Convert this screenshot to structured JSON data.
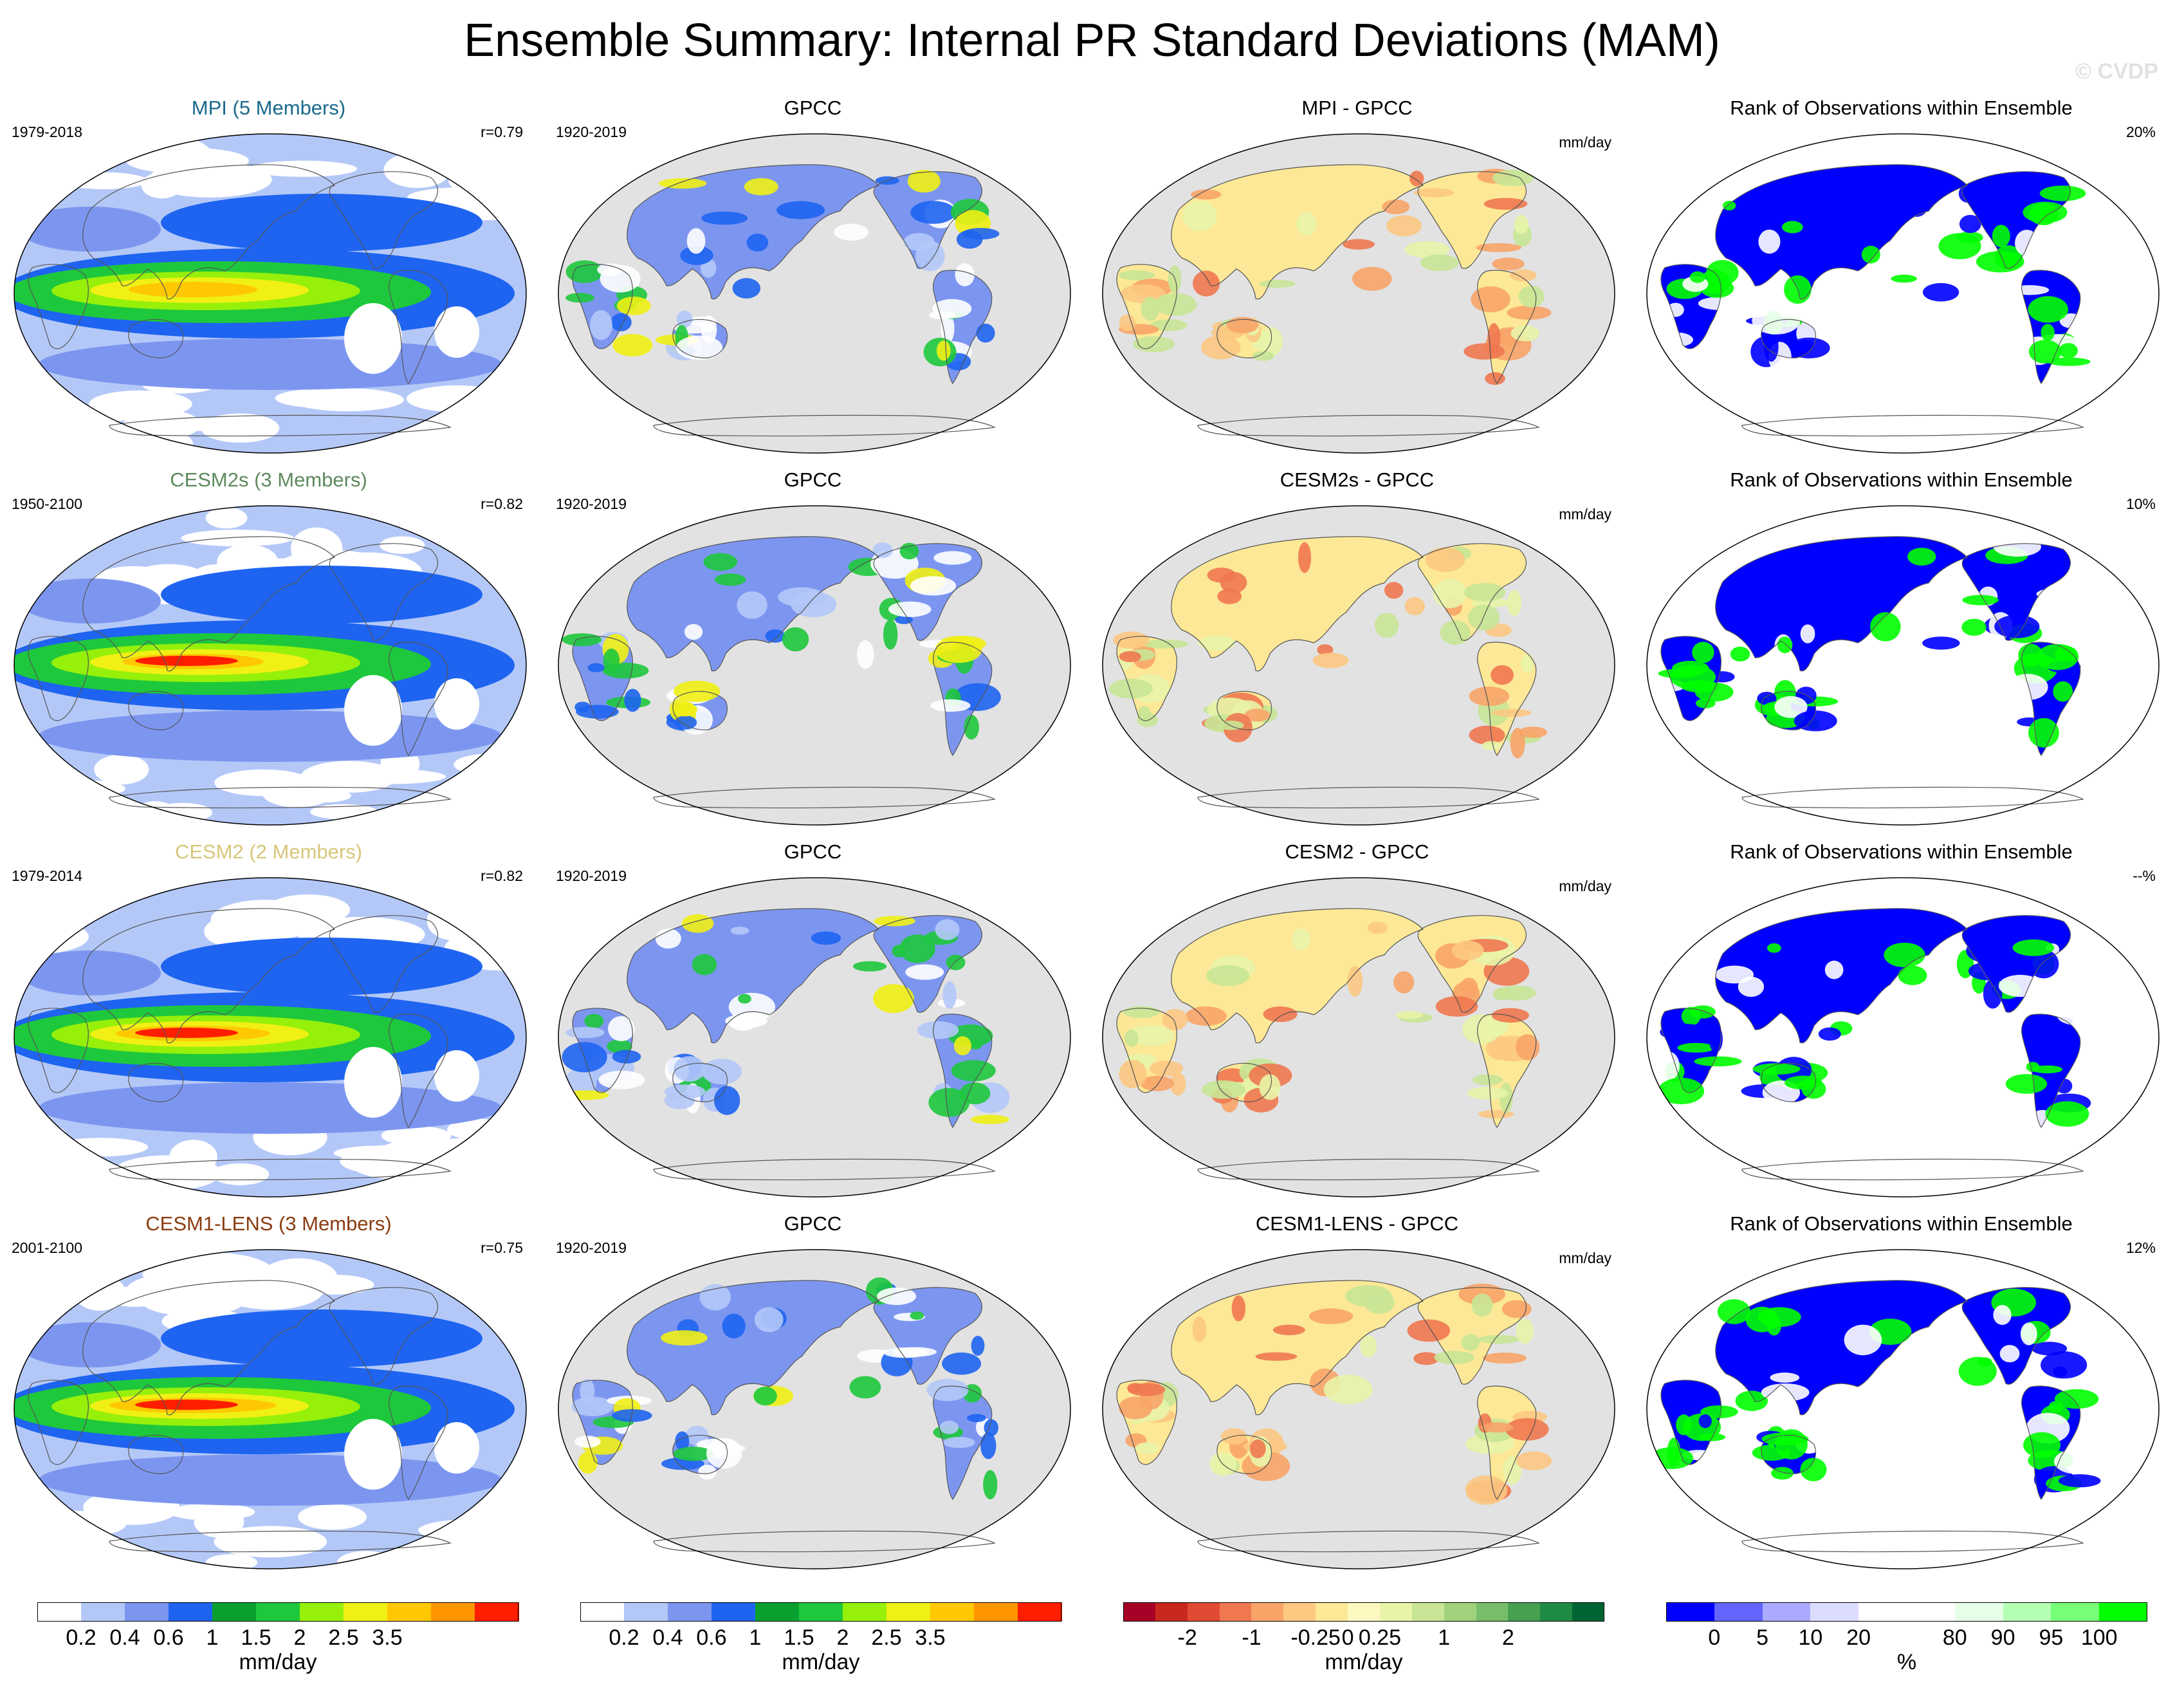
{
  "title": "Ensemble Summary: Internal PR Standard Deviations (MAM)",
  "watermark": "© CVDP",
  "rows": [
    {
      "model": {
        "title": "MPI (5 Members)",
        "title_color": "#1a6a8a",
        "years": "1979-2018",
        "r": "r=0.79"
      },
      "obs": {
        "title": "GPCC",
        "years": "1920-2019"
      },
      "diff": {
        "title": "MPI - GPCC",
        "units": "mm/day"
      },
      "rank": {
        "title": "Rank of Observations within Ensemble",
        "pct": "20%"
      }
    },
    {
      "model": {
        "title": "CESM2s (3 Members)",
        "title_color": "#5e8a5e",
        "years": "1950-2100",
        "r": "r=0.82"
      },
      "obs": {
        "title": "GPCC",
        "years": "1920-2019"
      },
      "diff": {
        "title": "CESM2s - GPCC",
        "units": "mm/day"
      },
      "rank": {
        "title": "Rank of Observations within Ensemble",
        "pct": "10%"
      }
    },
    {
      "model": {
        "title": "CESM2 (2 Members)",
        "title_color": "#d8c67a",
        "years": "1979-2014",
        "r": "r=0.82"
      },
      "obs": {
        "title": "GPCC",
        "years": "1920-2019"
      },
      "diff": {
        "title": "CESM2 - GPCC",
        "units": "mm/day"
      },
      "rank": {
        "title": "Rank of Observations within Ensemble",
        "pct": "--%"
      }
    },
    {
      "model": {
        "title": "CESM1-LENS (3 Members)",
        "title_color": "#8a3c10",
        "years": "2001-2100",
        "r": "r=0.75"
      },
      "obs": {
        "title": "GPCC",
        "years": "1920-2019"
      },
      "diff": {
        "title": "CESM1-LENS - GPCC",
        "units": "mm/day"
      },
      "rank": {
        "title": "Rank of Observations within Ensemble",
        "pct": "12%"
      }
    }
  ],
  "colorbars": [
    {
      "name": "stddev-model",
      "colors": [
        "#ffffff",
        "#b4c8f8",
        "#7c96f0",
        "#1e64f0",
        "#0aa030",
        "#1ec83c",
        "#96f00a",
        "#f0f014",
        "#ffc800",
        "#ff9600",
        "#ff1e00"
      ],
      "labels": [
        "0.2",
        "0.4",
        "0.6",
        "1",
        "1.5",
        "2",
        "2.5",
        "3.5"
      ],
      "label_slots": [
        1,
        2,
        3,
        4,
        5,
        6,
        7,
        8
      ],
      "units": "mm/day"
    },
    {
      "name": "stddev-obs",
      "colors": [
        "#ffffff",
        "#b4c8f8",
        "#7c96f0",
        "#1e64f0",
        "#0aa030",
        "#1ec83c",
        "#96f00a",
        "#f0f014",
        "#ffc800",
        "#ff9600",
        "#ff1e00"
      ],
      "labels": [
        "0.2",
        "0.4",
        "0.6",
        "1",
        "1.5",
        "2",
        "2.5",
        "3.5"
      ],
      "label_slots": [
        1,
        2,
        3,
        4,
        5,
        6,
        7,
        8
      ],
      "units": "mm/day"
    },
    {
      "name": "difference",
      "colors": [
        "#a50026",
        "#c8281e",
        "#e04a32",
        "#f07850",
        "#f8a468",
        "#fcc882",
        "#fce896",
        "#fcf8c0",
        "#e8f4a8",
        "#c8e696",
        "#a0d27c",
        "#78be6a",
        "#46a050",
        "#1e8a46",
        "#006432"
      ],
      "labels": [
        "-2",
        "-1",
        "-0.25",
        "0",
        "0.25",
        "1",
        "2"
      ],
      "label_slots": [
        2,
        4,
        6,
        7,
        8,
        10,
        12
      ],
      "units": "mm/day"
    },
    {
      "name": "rank",
      "colors": [
        "#0000ff",
        "#6464ff",
        "#aaaaff",
        "#dcdcff",
        "#ffffff",
        "#ffffff",
        "#e6ffe6",
        "#b4ffb4",
        "#78ff78",
        "#00ff00"
      ],
      "labels": [
        "0",
        "5",
        "10",
        "20",
        "80",
        "90",
        "95",
        "100"
      ],
      "label_slots": [
        1,
        2,
        3,
        4,
        6,
        7,
        8,
        9
      ],
      "units": "%"
    }
  ]
}
